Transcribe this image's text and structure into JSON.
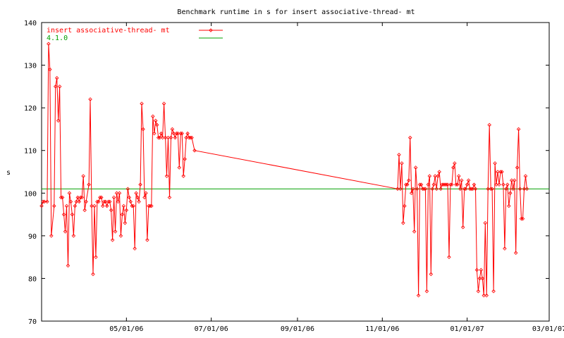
{
  "chart_data": {
    "type": "line",
    "title": "Benchmark runtime in s for insert associative-thread-  mt",
    "xlabel": "",
    "ylabel": "s",
    "xlim": [
      "2006-03-01",
      "2007-03-01"
    ],
    "ylim": [
      70,
      140
    ],
    "grid": false,
    "legend_position": "top-left",
    "x_ticks": [
      "05/01/06",
      "07/01/06",
      "09/01/06",
      "11/01/06",
      "01/01/07",
      "03/01/07"
    ],
    "x_tick_dates": [
      "2006-05-01",
      "2006-07-01",
      "2006-09-01",
      "2006-11-01",
      "2007-01-01",
      "2007-03-01"
    ],
    "y_ticks": [
      70,
      80,
      90,
      100,
      110,
      120,
      130,
      140
    ],
    "series": [
      {
        "name": "insert associative-thread-  mt",
        "color": "#ff0000",
        "marker": "diamond",
        "points": [
          [
            "2006-03-01",
            97
          ],
          [
            "2006-03-02",
            98
          ],
          [
            "2006-03-03",
            98
          ],
          [
            "2006-03-05",
            98
          ],
          [
            "2006-03-06",
            135
          ],
          [
            "2006-03-07",
            129
          ],
          [
            "2006-03-08",
            90
          ],
          [
            "2006-03-10",
            97
          ],
          [
            "2006-03-11",
            125
          ],
          [
            "2006-03-12",
            127
          ],
          [
            "2006-03-13",
            117
          ],
          [
            "2006-03-14",
            125
          ],
          [
            "2006-03-15",
            99
          ],
          [
            "2006-03-16",
            99
          ],
          [
            "2006-03-17",
            95
          ],
          [
            "2006-03-18",
            91
          ],
          [
            "2006-03-19",
            97
          ],
          [
            "2006-03-20",
            83
          ],
          [
            "2006-03-21",
            100
          ],
          [
            "2006-03-22",
            98
          ],
          [
            "2006-03-23",
            95
          ],
          [
            "2006-03-24",
            90
          ],
          [
            "2006-03-25",
            97
          ],
          [
            "2006-03-26",
            98
          ],
          [
            "2006-03-27",
            99
          ],
          [
            "2006-03-28",
            98
          ],
          [
            "2006-03-29",
            99
          ],
          [
            "2006-03-30",
            99
          ],
          [
            "2006-03-31",
            104
          ],
          [
            "2006-04-01",
            96
          ],
          [
            "2006-04-02",
            98
          ],
          [
            "2006-04-04",
            102
          ],
          [
            "2006-04-05",
            122
          ],
          [
            "2006-04-06",
            97
          ],
          [
            "2006-04-07",
            81
          ],
          [
            "2006-04-08",
            97
          ],
          [
            "2006-04-09",
            85
          ],
          [
            "2006-04-10",
            98
          ],
          [
            "2006-04-11",
            98
          ],
          [
            "2006-04-12",
            99
          ],
          [
            "2006-04-13",
            99
          ],
          [
            "2006-04-14",
            97
          ],
          [
            "2006-04-15",
            98
          ],
          [
            "2006-04-16",
            98
          ],
          [
            "2006-04-17",
            97
          ],
          [
            "2006-04-18",
            98
          ],
          [
            "2006-04-19",
            98
          ],
          [
            "2006-04-20",
            96
          ],
          [
            "2006-04-21",
            89
          ],
          [
            "2006-04-22",
            99
          ],
          [
            "2006-04-23",
            91
          ],
          [
            "2006-04-24",
            100
          ],
          [
            "2006-04-25",
            98
          ],
          [
            "2006-04-26",
            100
          ],
          [
            "2006-04-27",
            90
          ],
          [
            "2006-04-28",
            95
          ],
          [
            "2006-04-29",
            97
          ],
          [
            "2006-04-30",
            93
          ],
          [
            "2006-05-01",
            96
          ],
          [
            "2006-05-02",
            101
          ],
          [
            "2006-05-03",
            99
          ],
          [
            "2006-05-04",
            98
          ],
          [
            "2006-05-05",
            97
          ],
          [
            "2006-05-06",
            97
          ],
          [
            "2006-05-07",
            87
          ],
          [
            "2006-05-08",
            100
          ],
          [
            "2006-05-09",
            99
          ],
          [
            "2006-05-10",
            98
          ],
          [
            "2006-05-11",
            102
          ],
          [
            "2006-05-12",
            121
          ],
          [
            "2006-05-13",
            115
          ],
          [
            "2006-05-14",
            99
          ],
          [
            "2006-05-15",
            100
          ],
          [
            "2006-05-16",
            89
          ],
          [
            "2006-05-17",
            97
          ],
          [
            "2006-05-18",
            97
          ],
          [
            "2006-05-19",
            97
          ],
          [
            "2006-05-20",
            118
          ],
          [
            "2006-05-21",
            114
          ],
          [
            "2006-05-22",
            117
          ],
          [
            "2006-05-23",
            116
          ],
          [
            "2006-05-24",
            113
          ],
          [
            "2006-05-25",
            113
          ],
          [
            "2006-05-26",
            114
          ],
          [
            "2006-05-27",
            113
          ],
          [
            "2006-05-28",
            121
          ],
          [
            "2006-05-29",
            113
          ],
          [
            "2006-05-30",
            104
          ],
          [
            "2006-05-31",
            113
          ],
          [
            "2006-06-01",
            99
          ],
          [
            "2006-06-02",
            113
          ],
          [
            "2006-06-03",
            115
          ],
          [
            "2006-06-04",
            114
          ],
          [
            "2006-06-05",
            113
          ],
          [
            "2006-06-06",
            114
          ],
          [
            "2006-06-07",
            114
          ],
          [
            "2006-06-08",
            106
          ],
          [
            "2006-06-09",
            114
          ],
          [
            "2006-06-10",
            114
          ],
          [
            "2006-06-11",
            104
          ],
          [
            "2006-06-12",
            108
          ],
          [
            "2006-06-13",
            113
          ],
          [
            "2006-06-14",
            114
          ],
          [
            "2006-06-15",
            113
          ],
          [
            "2006-06-16",
            113
          ],
          [
            "2006-06-17",
            113
          ],
          [
            "2006-06-19",
            110
          ],
          [
            "2006-11-12",
            101
          ],
          [
            "2006-11-13",
            109
          ],
          [
            "2006-11-14",
            101
          ],
          [
            "2006-11-15",
            107
          ],
          [
            "2006-11-16",
            93
          ],
          [
            "2006-11-17",
            97
          ],
          [
            "2006-11-18",
            102
          ],
          [
            "2006-11-19",
            102
          ],
          [
            "2006-11-20",
            103
          ],
          [
            "2006-11-21",
            113
          ],
          [
            "2006-11-22",
            100
          ],
          [
            "2006-11-23",
            101
          ],
          [
            "2006-11-24",
            91
          ],
          [
            "2006-11-25",
            106
          ],
          [
            "2006-11-26",
            101
          ],
          [
            "2006-11-27",
            76
          ],
          [
            "2006-11-28",
            102
          ],
          [
            "2006-11-29",
            102
          ],
          [
            "2006-11-30",
            101
          ],
          [
            "2006-12-01",
            101
          ],
          [
            "2006-12-02",
            101
          ],
          [
            "2006-12-03",
            77
          ],
          [
            "2006-12-04",
            102
          ],
          [
            "2006-12-05",
            104
          ],
          [
            "2006-12-06",
            81
          ],
          [
            "2006-12-07",
            101
          ],
          [
            "2006-12-08",
            102
          ],
          [
            "2006-12-09",
            104
          ],
          [
            "2006-12-10",
            101
          ],
          [
            "2006-12-11",
            104
          ],
          [
            "2006-12-12",
            105
          ],
          [
            "2006-12-13",
            101
          ],
          [
            "2006-12-14",
            102
          ],
          [
            "2006-12-15",
            102
          ],
          [
            "2006-12-16",
            102
          ],
          [
            "2006-12-17",
            102
          ],
          [
            "2006-12-18",
            102
          ],
          [
            "2006-12-19",
            85
          ],
          [
            "2006-12-20",
            102
          ],
          [
            "2006-12-21",
            102
          ],
          [
            "2006-12-22",
            106
          ],
          [
            "2006-12-23",
            107
          ],
          [
            "2006-12-24",
            102
          ],
          [
            "2006-12-25",
            102
          ],
          [
            "2006-12-26",
            104
          ],
          [
            "2006-12-27",
            101
          ],
          [
            "2006-12-28",
            103
          ],
          [
            "2006-12-29",
            92
          ],
          [
            "2006-12-30",
            101
          ],
          [
            "2006-12-31",
            101
          ],
          [
            "2007-01-01",
            102
          ],
          [
            "2007-01-02",
            103
          ],
          [
            "2007-01-03",
            101
          ],
          [
            "2007-01-04",
            101
          ],
          [
            "2007-01-05",
            101
          ],
          [
            "2007-01-06",
            102
          ],
          [
            "2007-01-07",
            101
          ],
          [
            "2007-01-08",
            82
          ],
          [
            "2007-01-09",
            77
          ],
          [
            "2007-01-10",
            80
          ],
          [
            "2007-01-11",
            82
          ],
          [
            "2007-01-12",
            80
          ],
          [
            "2007-01-13",
            76
          ],
          [
            "2007-01-14",
            93
          ],
          [
            "2007-01-15",
            76
          ],
          [
            "2007-01-16",
            101
          ],
          [
            "2007-01-17",
            116
          ],
          [
            "2007-01-18",
            101
          ],
          [
            "2007-01-19",
            101
          ],
          [
            "2007-01-20",
            77
          ],
          [
            "2007-01-21",
            107
          ],
          [
            "2007-01-22",
            102
          ],
          [
            "2007-01-23",
            105
          ],
          [
            "2007-01-24",
            102
          ],
          [
            "2007-01-25",
            105
          ],
          [
            "2007-01-26",
            105
          ],
          [
            "2007-01-27",
            102
          ],
          [
            "2007-01-28",
            87
          ],
          [
            "2007-01-29",
            101
          ],
          [
            "2007-01-30",
            102
          ],
          [
            "2007-01-31",
            97
          ],
          [
            "2007-02-01",
            100
          ],
          [
            "2007-02-02",
            103
          ],
          [
            "2007-02-03",
            101
          ],
          [
            "2007-02-04",
            103
          ],
          [
            "2007-02-05",
            86
          ],
          [
            "2007-02-06",
            106
          ],
          [
            "2007-02-07",
            115
          ],
          [
            "2007-02-08",
            101
          ],
          [
            "2007-02-09",
            94
          ],
          [
            "2007-02-10",
            94
          ],
          [
            "2007-02-11",
            101
          ],
          [
            "2007-02-12",
            104
          ],
          [
            "2007-02-13",
            101
          ]
        ]
      },
      {
        "name": "4.1.0",
        "color": "#00a000",
        "marker": "none",
        "constant": 101
      }
    ]
  }
}
